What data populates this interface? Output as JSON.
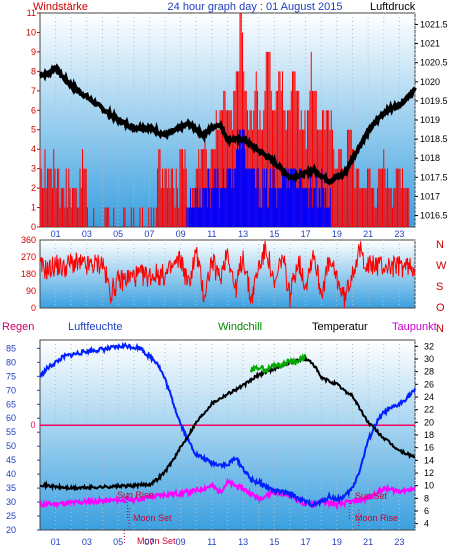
{
  "title": "24 hour graph day : 01 August 2015",
  "colors": {
    "wind": "#ff0000",
    "gust_blue": "#0000ff",
    "pressure": "#000000",
    "humidity": "#0020ff",
    "windchill": "#00aa00",
    "temperature": "#000000",
    "dewpoint": "#ff00ff",
    "rain": "#ff0066",
    "plot_bg_top": "#ffffff",
    "plot_bg_bottom": "#3aa0e0",
    "left_axis_red": "#cc0000",
    "left_axis_blue": "#1f3fbf"
  },
  "hour_labels": [
    "01",
    "03",
    "05",
    "07",
    "09",
    "11",
    "13",
    "15",
    "17",
    "19",
    "21",
    "23"
  ],
  "chart_data": [
    {
      "type": "bar",
      "name": "wind_pressure",
      "left_label": "Windstärke",
      "right_label": "Luftdruck",
      "left_ticks": [
        "0",
        "1",
        "2",
        "3",
        "4",
        "5",
        "6",
        "7",
        "8",
        "9",
        "10",
        "11"
      ],
      "left_ylim": [
        0,
        11
      ],
      "right_ticks": [
        "1016.5",
        "1017",
        "1017.5",
        "1018",
        "1018.5",
        "1019",
        "1019.5",
        "1020",
        "1020.5",
        "1021",
        "1021.5"
      ],
      "right_ylim": [
        1016.2,
        1021.8
      ],
      "wind_strength_red": [
        [
          0.0,
          3
        ],
        [
          0.3,
          2
        ],
        [
          0.3,
          3
        ],
        [
          1.2,
          3
        ],
        [
          1.2,
          2
        ],
        [
          2.5,
          2
        ],
        [
          2.5,
          3
        ],
        [
          3.0,
          3
        ],
        [
          3.0,
          0
        ],
        [
          7.5,
          0
        ],
        [
          7.5,
          3
        ],
        [
          8.6,
          3
        ],
        [
          8.6,
          2
        ],
        [
          8.9,
          2
        ],
        [
          8.9,
          5
        ],
        [
          9.3,
          3
        ],
        [
          9.6,
          0
        ],
        [
          10.0,
          3
        ],
        [
          10.4,
          5
        ],
        [
          10.8,
          3
        ],
        [
          11.2,
          5
        ],
        [
          11.8,
          6
        ],
        [
          12.3,
          5
        ],
        [
          12.7,
          9
        ],
        [
          12.9,
          11
        ],
        [
          13.1,
          7
        ],
        [
          13.4,
          5
        ],
        [
          13.8,
          7
        ],
        [
          14.2,
          5
        ],
        [
          14.6,
          9
        ],
        [
          15.0,
          6
        ],
        [
          15.4,
          8
        ],
        [
          15.8,
          5
        ],
        [
          16.2,
          9
        ],
        [
          16.6,
          6
        ],
        [
          17.0,
          5
        ],
        [
          17.4,
          8
        ],
        [
          17.8,
          5
        ],
        [
          18.2,
          6
        ],
        [
          18.6,
          5
        ],
        [
          19.0,
          4
        ],
        [
          19.4,
          3
        ],
        [
          19.8,
          5
        ],
        [
          20.2,
          3
        ],
        [
          20.6,
          2
        ],
        [
          21.0,
          3
        ],
        [
          21.4,
          2
        ],
        [
          22.0,
          3
        ],
        [
          22.8,
          2
        ],
        [
          23.2,
          3
        ],
        [
          23.6,
          2
        ]
      ],
      "wind_strength_blue": [
        [
          9.4,
          1
        ],
        [
          10.5,
          2
        ],
        [
          11.5,
          2
        ],
        [
          12.4,
          3
        ],
        [
          12.8,
          5
        ],
        [
          13.3,
          3
        ],
        [
          14.0,
          2
        ],
        [
          15.0,
          2
        ],
        [
          16.0,
          3
        ],
        [
          17.0,
          2
        ],
        [
          18.0,
          2
        ],
        [
          18.6,
          1
        ]
      ],
      "pressure_hpa": [
        [
          0.0,
          1020.2
        ],
        [
          0.5,
          1020.2
        ],
        [
          1.0,
          1020.4
        ],
        [
          1.3,
          1020.2
        ],
        [
          2.0,
          1019.9
        ],
        [
          3.0,
          1019.6
        ],
        [
          4.0,
          1019.3
        ],
        [
          5.0,
          1019.0
        ],
        [
          6.0,
          1018.8
        ],
        [
          7.0,
          1018.8
        ],
        [
          7.5,
          1018.7
        ],
        [
          8.0,
          1018.6
        ],
        [
          9.0,
          1018.8
        ],
        [
          9.5,
          1018.9
        ],
        [
          10.5,
          1018.6
        ],
        [
          11.0,
          1018.8
        ],
        [
          11.5,
          1018.9
        ],
        [
          12.0,
          1018.5
        ],
        [
          13.0,
          1018.5
        ],
        [
          14.0,
          1018.2
        ],
        [
          15.0,
          1017.9
        ],
        [
          16.0,
          1017.5
        ],
        [
          17.0,
          1017.6
        ],
        [
          17.5,
          1017.7
        ],
        [
          18.5,
          1017.4
        ],
        [
          19.5,
          1017.6
        ],
        [
          20.0,
          1018.0
        ],
        [
          21.0,
          1018.7
        ],
        [
          22.0,
          1019.2
        ],
        [
          23.0,
          1019.4
        ],
        [
          24.0,
          1019.8
        ]
      ]
    },
    {
      "type": "line",
      "name": "wind_direction",
      "left_ticks": [
        "0",
        "90",
        "180",
        "270",
        "360"
      ],
      "right_ticks": [
        "N",
        "W",
        "S",
        "O",
        "N"
      ],
      "ylim": [
        0,
        360
      ],
      "direction_deg": [
        [
          0.0,
          220
        ],
        [
          0.5,
          200
        ],
        [
          1.0,
          230
        ],
        [
          1.5,
          210
        ],
        [
          2.0,
          240
        ],
        [
          3.0,
          220
        ],
        [
          4.0,
          240
        ],
        [
          4.5,
          80
        ],
        [
          5.0,
          140
        ],
        [
          6.0,
          170
        ],
        [
          7.0,
          170
        ],
        [
          7.5,
          180
        ],
        [
          8.0,
          170
        ],
        [
          9.0,
          260
        ],
        [
          9.5,
          120
        ],
        [
          10.0,
          300
        ],
        [
          10.5,
          60
        ],
        [
          11.0,
          250
        ],
        [
          11.5,
          150
        ],
        [
          12.0,
          310
        ],
        [
          12.5,
          90
        ],
        [
          13.0,
          280
        ],
        [
          13.5,
          40
        ],
        [
          14.0,
          220
        ],
        [
          14.5,
          320
        ],
        [
          15.0,
          100
        ],
        [
          15.5,
          280
        ],
        [
          16.0,
          60
        ],
        [
          16.5,
          260
        ],
        [
          17.0,
          120
        ],
        [
          17.5,
          300
        ],
        [
          18.0,
          80
        ],
        [
          18.5,
          240
        ],
        [
          19.0,
          160
        ],
        [
          19.5,
          40
        ],
        [
          20.0,
          200
        ],
        [
          20.5,
          300
        ],
        [
          21.0,
          220
        ],
        [
          21.5,
          230
        ],
        [
          22.0,
          220
        ],
        [
          24.0,
          220
        ]
      ]
    },
    {
      "type": "line",
      "name": "temp_humidity",
      "labels": {
        "rain": "Regen",
        "humidity": "Luftfeuchte",
        "windchill": "Windchill",
        "temperature": "Temperatur",
        "dewpoint": "Taupunkt"
      },
      "humidity_ticks": [
        "20",
        "25",
        "30",
        "35",
        "40",
        "45",
        "50",
        "55",
        "60",
        "65",
        "70",
        "75",
        "80",
        "85"
      ],
      "humidity_ylim": [
        20,
        88
      ],
      "temp_ticks": [
        "4",
        "6",
        "8",
        "10",
        "12",
        "14",
        "16",
        "18",
        "20",
        "22",
        "24",
        "26",
        "28",
        "30",
        "32"
      ],
      "temp_ylim": [
        3,
        33
      ],
      "rain_value_label": "0",
      "rain_level": 57.5,
      "humidity_pct": [
        [
          0.0,
          75
        ],
        [
          0.5,
          78
        ],
        [
          1.5,
          82
        ],
        [
          3.0,
          84
        ],
        [
          4.5,
          85
        ],
        [
          5.5,
          86
        ],
        [
          6.5,
          85
        ],
        [
          6.8,
          83
        ],
        [
          7.5,
          80
        ],
        [
          8.0,
          74
        ],
        [
          8.5,
          66
        ],
        [
          9.0,
          58
        ],
        [
          9.5,
          52
        ],
        [
          10.0,
          47
        ],
        [
          11.0,
          44
        ],
        [
          12.0,
          43
        ],
        [
          12.5,
          46
        ],
        [
          13.0,
          42
        ],
        [
          13.5,
          38
        ],
        [
          14.0,
          37
        ],
        [
          15.0,
          34
        ],
        [
          16.0,
          33
        ],
        [
          17.0,
          30
        ],
        [
          17.5,
          29
        ],
        [
          18.0,
          30
        ],
        [
          18.5,
          32
        ],
        [
          19.0,
          31
        ],
        [
          19.5,
          32
        ],
        [
          20.0,
          35
        ],
        [
          20.5,
          42
        ],
        [
          21.0,
          52
        ],
        [
          21.5,
          58
        ],
        [
          22.0,
          62
        ],
        [
          23.0,
          65
        ],
        [
          24.0,
          70
        ]
      ],
      "temperature_c": [
        [
          0.0,
          10.2
        ],
        [
          1.0,
          9.8
        ],
        [
          2.0,
          9.6
        ],
        [
          3.0,
          9.7
        ],
        [
          4.0,
          9.8
        ],
        [
          5.0,
          9.9
        ],
        [
          6.0,
          10.0
        ],
        [
          7.0,
          10.2
        ],
        [
          7.5,
          11.0
        ],
        [
          8.0,
          12.2
        ],
        [
          8.5,
          14.0
        ],
        [
          9.0,
          16.0
        ],
        [
          9.5,
          18.0
        ],
        [
          10.0,
          20.0
        ],
        [
          10.5,
          21.5
        ],
        [
          11.0,
          23.0
        ],
        [
          12.0,
          24.5
        ],
        [
          13.0,
          25.8
        ],
        [
          14.0,
          27.5
        ],
        [
          15.0,
          28.5
        ],
        [
          15.5,
          29.0
        ],
        [
          16.0,
          29.5
        ],
        [
          16.5,
          29.8
        ],
        [
          17.0,
          30.0
        ],
        [
          17.5,
          29.2
        ],
        [
          18.0,
          27.0
        ],
        [
          19.0,
          26.0
        ],
        [
          19.5,
          25.0
        ],
        [
          20.0,
          24.2
        ],
        [
          20.5,
          22.0
        ],
        [
          21.0,
          20.0
        ],
        [
          22.0,
          17.5
        ],
        [
          23.0,
          15.5
        ],
        [
          24.0,
          14.5
        ]
      ],
      "windchill_c": [
        [
          13.5,
          28.0
        ],
        [
          14.0,
          28.8
        ],
        [
          14.5,
          28.2
        ],
        [
          15.0,
          29.2
        ],
        [
          15.5,
          29.0
        ],
        [
          16.0,
          29.8
        ],
        [
          16.5,
          29.5
        ],
        [
          17.0,
          30.5
        ]
      ],
      "dewpoint_c": [
        [
          0.0,
          7.0
        ],
        [
          2.0,
          7.3
        ],
        [
          4.0,
          7.6
        ],
        [
          6.0,
          7.8
        ],
        [
          8.0,
          8.6
        ],
        [
          9.0,
          8.8
        ],
        [
          10.0,
          9.2
        ],
        [
          11.0,
          10.0
        ],
        [
          11.5,
          9.0
        ],
        [
          12.0,
          10.5
        ],
        [
          13.0,
          9.5
        ],
        [
          14.0,
          8.0
        ],
        [
          15.0,
          9.0
        ],
        [
          16.0,
          8.5
        ],
        [
          17.0,
          7.0
        ],
        [
          18.0,
          7.5
        ],
        [
          19.0,
          7.0
        ],
        [
          20.0,
          7.5
        ],
        [
          21.0,
          8.0
        ],
        [
          22.0,
          9.5
        ],
        [
          23.0,
          9.2
        ],
        [
          24.0,
          9.5
        ]
      ],
      "annotations": [
        {
          "text": "Sun Rise",
          "hour": 5.6
        },
        {
          "text": "Moon Set",
          "hour": 5.7
        },
        {
          "text": "Moon Set",
          "hour": 5.4
        },
        {
          "text": "Sun Set",
          "hour": 19.8
        },
        {
          "text": "Moon Rise",
          "hour": 20.4
        }
      ]
    }
  ]
}
